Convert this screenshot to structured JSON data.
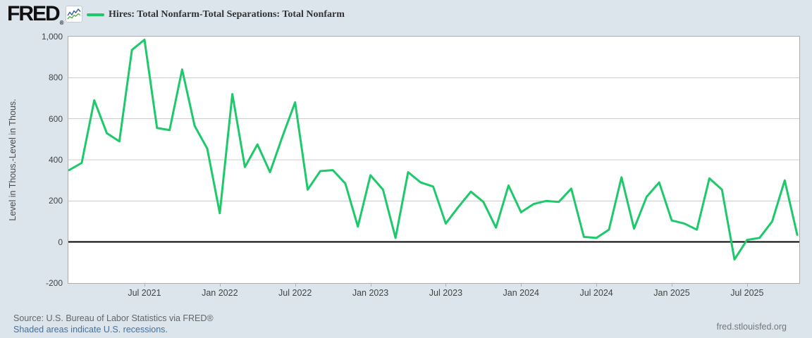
{
  "header": {
    "logo": "FRED",
    "registered": "®",
    "legend_label": "Hires: Total Nonfarm-Total Separations: Total Nonfarm"
  },
  "y_axis": {
    "title": "Level in Thous.-Level in Thous.",
    "ticks": [
      "1,000",
      "800",
      "600",
      "400",
      "200",
      "0",
      "-200"
    ]
  },
  "x_axis": {
    "ticks": [
      "Jul 2021",
      "Jan 2022",
      "Jul 2022",
      "Jan 2023",
      "Jul 2023",
      "Jan 2024",
      "Jul 2024",
      "Jan 2025",
      "Jul 2025"
    ]
  },
  "footer": {
    "source": "Source: U.S. Bureau of Labor Statistics via FRED®",
    "shaded": "Shaded areas indicate U.S. recessions.",
    "site": "fred.stlouisfed.org"
  },
  "colors": {
    "line_green": "#1dc96a",
    "background": "#dce4ec",
    "plot_border": "#adadad",
    "gridline": "#cccccc",
    "zero_line": "#000000",
    "axis_text": "#444444",
    "source_text": "#666666",
    "link_text": "#44709d",
    "site_text": "#76787a",
    "icon_blue": "#3b5d99",
    "icon_green": "#5fae4e"
  },
  "chart_data": {
    "type": "line",
    "title": "Hires: Total Nonfarm-Total Separations: Total Nonfarm",
    "ylabel": "Level in Thous.-Level in Thous.",
    "ylim": [
      -200,
      1000
    ],
    "y_tick_step": 200,
    "grid": "horizontal",
    "legend_position": "top-left",
    "series_name": "Hires: Total Nonfarm-Total Separations: Total Nonfarm",
    "x": [
      "Jan 2021",
      "Feb 2021",
      "Mar 2021",
      "Apr 2021",
      "May 2021",
      "Jun 2021",
      "Jul 2021",
      "Aug 2021",
      "Sep 2021",
      "Oct 2021",
      "Nov 2021",
      "Dec 2021",
      "Jan 2022",
      "Feb 2022",
      "Mar 2022",
      "Apr 2022",
      "May 2022",
      "Jun 2022",
      "Jul 2022",
      "Aug 2022",
      "Sep 2022",
      "Oct 2022",
      "Nov 2022",
      "Dec 2022",
      "Jan 2023",
      "Feb 2023",
      "Mar 2023",
      "Apr 2023",
      "May 2023",
      "Jun 2023",
      "Jul 2023",
      "Aug 2023",
      "Sep 2023",
      "Oct 2023",
      "Nov 2023",
      "Dec 2023",
      "Jan 2024",
      "Feb 2024",
      "Mar 2024",
      "Apr 2024",
      "May 2024",
      "Jun 2024",
      "Jul 2024",
      "Aug 2024",
      "Sep 2024",
      "Oct 2024",
      "Nov 2024",
      "Dec 2024",
      "Jan 2025",
      "Feb 2025",
      "Mar 2025",
      "Apr 2025",
      "May 2025",
      "Jun 2025",
      "Jul 2025",
      "Aug 2025",
      "Sep 2025",
      "Oct 2025",
      "Nov 2025"
    ],
    "values": [
      350,
      385,
      690,
      530,
      490,
      935,
      985,
      555,
      545,
      840,
      565,
      455,
      140,
      720,
      365,
      475,
      340,
      515,
      680,
      255,
      345,
      350,
      285,
      75,
      325,
      255,
      20,
      340,
      290,
      270,
      90,
      170,
      245,
      195,
      70,
      275,
      145,
      185,
      200,
      195,
      260,
      25,
      20,
      60,
      315,
      65,
      220,
      290,
      105,
      90,
      60,
      310,
      255,
      -85,
      10,
      20,
      100,
      300,
      35
    ],
    "x_tick_indices": [
      6,
      12,
      18,
      24,
      30,
      36,
      42,
      48,
      54
    ]
  }
}
